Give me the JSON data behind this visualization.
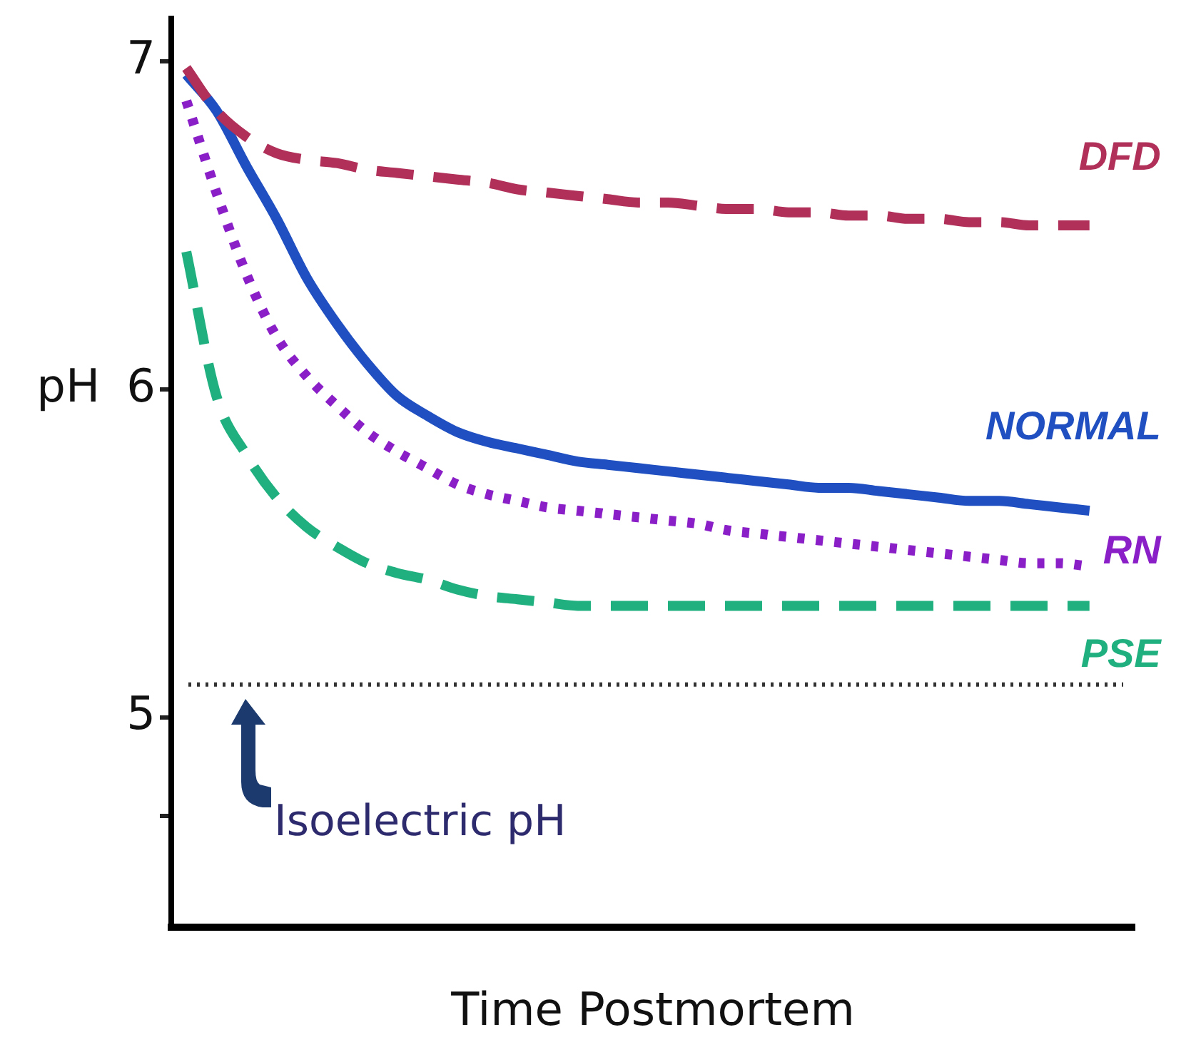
{
  "chart_data": {
    "type": "line",
    "xlabel": "Time Postmortem",
    "ylabel": "pH",
    "categories": [
      null,
      null,
      null,
      null,
      null,
      null,
      null,
      null,
      null,
      null,
      null,
      null,
      null,
      null,
      null,
      null,
      null,
      null,
      null,
      null,
      null,
      null,
      null,
      null,
      null,
      null,
      null,
      null,
      null,
      null,
      null,
      null
    ],
    "series": [
      {
        "name": "DFD",
        "color": "#b0305a",
        "line_style": "dashed",
        "values": [
          6.98,
          6.85,
          6.77,
          6.72,
          6.7,
          6.69,
          6.67,
          6.66,
          6.65,
          6.64,
          6.63,
          6.61,
          6.6,
          6.59,
          6.58,
          6.57,
          6.57,
          6.56,
          6.55,
          6.55,
          6.54,
          6.54,
          6.53,
          6.53,
          6.52,
          6.52,
          6.51,
          6.51,
          6.5,
          6.5,
          6.5,
          null
        ]
      },
      {
        "name": "NORMAL",
        "color": "#1f4fc0",
        "line_style": "solid",
        "values": [
          6.96,
          6.85,
          6.68,
          6.52,
          6.34,
          6.2,
          6.08,
          5.98,
          5.92,
          5.87,
          5.84,
          5.82,
          5.8,
          5.78,
          5.77,
          5.76,
          5.75,
          5.74,
          5.73,
          5.72,
          5.71,
          5.7,
          5.7,
          5.69,
          5.68,
          5.67,
          5.66,
          5.66,
          5.65,
          5.64,
          5.63,
          null
        ]
      },
      {
        "name": "RN",
        "color": "#8a1fc8",
        "line_style": "dotted",
        "values": [
          6.88,
          6.6,
          6.35,
          6.16,
          6.04,
          5.95,
          5.87,
          5.81,
          5.76,
          5.71,
          5.68,
          5.66,
          5.64,
          5.63,
          5.62,
          5.61,
          5.6,
          5.59,
          5.57,
          5.56,
          5.55,
          5.54,
          5.53,
          5.52,
          5.51,
          5.5,
          5.49,
          5.48,
          5.47,
          5.47,
          5.46,
          null
        ]
      },
      {
        "name": "PSE",
        "color": "#20b080",
        "line_style": "dashed",
        "values": [
          6.42,
          5.98,
          5.8,
          5.67,
          5.58,
          5.52,
          5.47,
          5.44,
          5.42,
          5.39,
          5.37,
          5.36,
          5.35,
          5.34,
          5.34,
          5.34,
          5.34,
          5.34,
          5.34,
          5.34,
          5.34,
          5.34,
          5.34,
          5.34,
          5.34,
          5.34,
          5.34,
          5.34,
          5.34,
          5.34,
          5.34,
          null
        ]
      }
    ],
    "ylim": [
      4.36,
      7.13
    ],
    "yticks": [
      {
        "value": 4.7,
        "label": null
      },
      5,
      6,
      7
    ],
    "ref_lines": [
      {
        "axis": "y",
        "value": 5.1,
        "label": "Isoelectric pH",
        "color": "#333333",
        "line_style": "dotted"
      }
    ],
    "grid": false,
    "legend": false,
    "tick_labels": "y"
  }
}
